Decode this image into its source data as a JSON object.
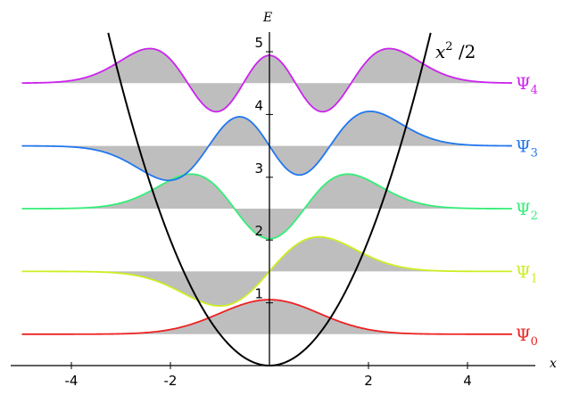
{
  "chart_data": {
    "type": "line",
    "title": "",
    "xlabel": "x",
    "ylabel": "E",
    "xlim": [
      -5,
      5
    ],
    "ylim": [
      0,
      5.3
    ],
    "x_ticks": [
      -4,
      -2,
      2,
      4
    ],
    "y_ticks": [
      1,
      2,
      3,
      4,
      5
    ],
    "x_tick_labels": [
      "-4",
      "-2",
      "2",
      "4"
    ],
    "y_tick_labels": [
      "1",
      "2",
      "3",
      "4",
      "5"
    ],
    "grid": false,
    "potential": {
      "label_main": "x",
      "label_sup": "2",
      "label_rest": " /2",
      "color": "#000000"
    },
    "fill_color": "#bebebe",
    "series": [
      {
        "name": "Ψ",
        "sub": "0",
        "n": 0,
        "energy": 0.5,
        "color": "#ee2222"
      },
      {
        "name": "Ψ",
        "sub": "1",
        "n": 1,
        "energy": 1.5,
        "color": "#ccee22"
      },
      {
        "name": "Ψ",
        "sub": "2",
        "n": 2,
        "energy": 2.5,
        "color": "#33ee77"
      },
      {
        "name": "Ψ",
        "sub": "3",
        "n": 3,
        "energy": 3.5,
        "color": "#2277ee"
      },
      {
        "name": "Ψ",
        "sub": "4",
        "n": 4,
        "energy": 4.5,
        "color": "#cc22ee"
      }
    ]
  }
}
